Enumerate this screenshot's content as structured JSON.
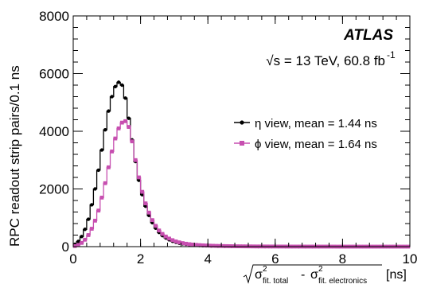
{
  "chart_data": {
    "type": "line",
    "title": "",
    "xlabel": "[ns]",
    "xlabel_formula": "sqrt( σ²_fit. total - σ²_fit. electronics )",
    "ylabel": "RPC readout strip pairs/0.1 ns",
    "xlim": [
      0,
      10
    ],
    "ylim": [
      0,
      8000
    ],
    "x_ticks": [
      "0",
      "2",
      "4",
      "6",
      "8",
      "10"
    ],
    "y_ticks": [
      "0",
      "2000",
      "4000",
      "6000",
      "8000"
    ],
    "grid": false,
    "legend_position": "right",
    "annotations": {
      "experiment": "ATLAS",
      "energy": "√s = 13 TeV, 60.8 fb",
      "energy_sup": "-1"
    },
    "bin_width": 0.1,
    "series": [
      {
        "name": "η view, mean = 1.44 ns",
        "color": "#000000",
        "marker": "circle",
        "x": [
          0.05,
          0.15,
          0.25,
          0.35,
          0.45,
          0.55,
          0.65,
          0.75,
          0.85,
          0.95,
          1.05,
          1.15,
          1.25,
          1.35,
          1.45,
          1.55,
          1.65,
          1.75,
          1.85,
          1.95,
          2.05,
          2.15,
          2.25,
          2.35,
          2.45,
          2.55,
          2.65,
          2.75,
          2.85,
          2.95,
          3.05,
          3.15,
          3.25,
          3.35,
          3.45,
          3.55,
          3.65,
          3.75,
          3.85,
          3.95,
          4.1,
          4.3,
          4.5,
          4.7,
          4.9,
          5.1,
          5.3,
          5.5,
          5.7,
          5.9,
          6.1,
          6.3,
          6.5,
          6.7,
          6.9,
          7.1,
          7.3
        ],
        "y": [
          80,
          180,
          350,
          600,
          950,
          1450,
          2000,
          2650,
          3350,
          4050,
          4700,
          5200,
          5550,
          5700,
          5600,
          5150,
          4450,
          3700,
          2950,
          2300,
          1800,
          1400,
          1080,
          830,
          640,
          490,
          380,
          300,
          235,
          185,
          150,
          120,
          97,
          80,
          66,
          55,
          46,
          39,
          33,
          28,
          22,
          16,
          12,
          9,
          7,
          5,
          4,
          3,
          2,
          2,
          1,
          1,
          1,
          0,
          0,
          0,
          0
        ]
      },
      {
        "name": "ϕ view, mean = 1.64 ns",
        "color": "#c74fb0",
        "marker": "square",
        "x": [
          0.05,
          0.15,
          0.25,
          0.35,
          0.45,
          0.55,
          0.65,
          0.75,
          0.85,
          0.95,
          1.05,
          1.15,
          1.25,
          1.35,
          1.45,
          1.55,
          1.65,
          1.75,
          1.85,
          1.95,
          2.05,
          2.15,
          2.25,
          2.35,
          2.45,
          2.55,
          2.65,
          2.75,
          2.85,
          2.95,
          3.05,
          3.15,
          3.25,
          3.35,
          3.45,
          3.55,
          3.65,
          3.75,
          3.85,
          3.95,
          4.05,
          4.15,
          4.25,
          4.35,
          4.45,
          4.55,
          4.65,
          4.75,
          4.85,
          4.95,
          5.05,
          5.15,
          5.25,
          5.35,
          5.45,
          5.55,
          5.65,
          5.75,
          5.85,
          5.95,
          6.05,
          6.15,
          6.25,
          6.35,
          6.45,
          6.55,
          6.65,
          6.75,
          6.85,
          6.95,
          7.05,
          7.15,
          7.25,
          7.35,
          7.45,
          7.55,
          7.65,
          7.75,
          7.85,
          7.95,
          8.05,
          8.15,
          8.25,
          8.35,
          8.45,
          8.55,
          8.65,
          8.75,
          8.85,
          8.95,
          9.05,
          9.15,
          9.25,
          9.35,
          9.45,
          9.55,
          9.65,
          9.75,
          9.85,
          9.95
        ],
        "y": [
          20,
          60,
          130,
          240,
          400,
          620,
          900,
          1250,
          1700,
          2200,
          2750,
          3300,
          3750,
          4100,
          4300,
          4350,
          4150,
          3650,
          3000,
          2400,
          1900,
          1500,
          1180,
          920,
          720,
          560,
          440,
          350,
          280,
          225,
          180,
          148,
          122,
          101,
          85,
          72,
          61,
          52,
          45,
          39,
          34,
          30,
          26,
          23,
          20,
          18,
          16,
          14,
          12,
          11,
          10,
          9,
          8,
          7,
          6,
          6,
          5,
          5,
          4,
          4,
          3,
          3,
          3,
          2,
          2,
          2,
          2,
          2,
          1,
          1,
          1,
          1,
          1,
          1,
          1,
          1,
          1,
          1,
          0,
          0,
          0,
          0,
          0,
          0,
          0,
          0,
          0,
          0,
          0,
          0,
          0,
          0,
          0,
          0,
          0,
          0,
          0,
          0,
          0,
          0
        ]
      }
    ]
  }
}
